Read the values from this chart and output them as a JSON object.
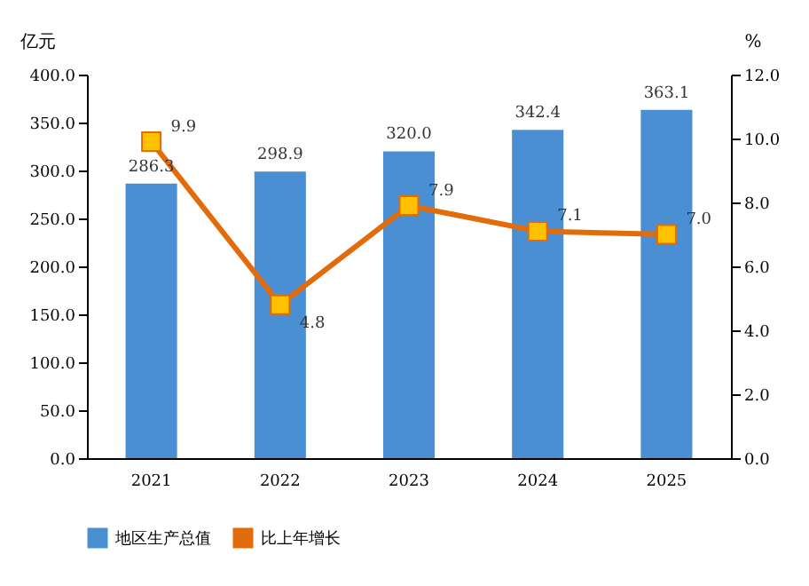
{
  "chart_data": {
    "type": "bar",
    "categories": [
      "2021",
      "2022",
      "2023",
      "2024",
      "2025"
    ],
    "series": [
      {
        "name": "地区生产总值",
        "color": "#4a8fd4",
        "values": [
          286.3,
          298.9,
          320.0,
          342.4,
          363.1
        ],
        "value_labels": [
          "286.3",
          "298.9",
          "320.0",
          "342.4",
          "363.1"
        ]
      },
      {
        "name": "比上年增长",
        "type": "line",
        "axis": "y2",
        "color": "#e36c0a",
        "values": [
          9.9,
          4.8,
          7.9,
          7.1,
          7.0
        ],
        "value_labels": [
          "9.9",
          "4.8",
          "7.9",
          "7.1",
          "7.0"
        ]
      }
    ],
    "ylabel": "亿元",
    "y2label": "%",
    "ylim": [
      0,
      400
    ],
    "yticks": [
      {
        "value": 0,
        "label": "0.0"
      },
      {
        "value": 50,
        "label": "50.0"
      },
      {
        "value": 100,
        "label": "100.0"
      },
      {
        "value": 150,
        "label": "150.0"
      },
      {
        "value": 200,
        "label": "200.0"
      },
      {
        "value": 250,
        "label": "250.0"
      },
      {
        "value": 300,
        "label": "300.0"
      },
      {
        "value": 350,
        "label": "350.0"
      },
      {
        "value": 400,
        "label": "400.0"
      }
    ],
    "y2lim": [
      0,
      12
    ],
    "y2ticks": [
      {
        "value": 0,
        "label": "0.0"
      },
      {
        "value": 2,
        "label": "2.0"
      },
      {
        "value": 4,
        "label": "4.0"
      },
      {
        "value": 6,
        "label": "6.0"
      },
      {
        "value": 8,
        "label": "8.0"
      },
      {
        "value": 10,
        "label": "10.0"
      },
      {
        "value": 12,
        "label": "12.0"
      }
    ],
    "legend": "bottom",
    "marker": "square",
    "line_style": "solid",
    "grid": false
  }
}
